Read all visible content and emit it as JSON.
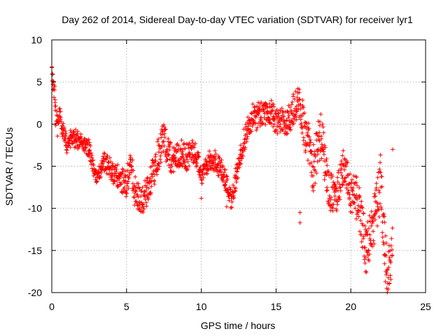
{
  "chart_data": {
    "type": "scatter",
    "title": "Day 262 of 2014, Sidereal Day-to-day VTEC variation (SDTVAR) for receiver lyr1",
    "xlabel": "GPS time / hours",
    "ylabel": "SDTVAR / TECUs",
    "xlim": [
      0,
      25
    ],
    "ylim": [
      -20,
      10
    ],
    "x_ticks": [
      0,
      5,
      10,
      15,
      20,
      25
    ],
    "x_tick_labels": [
      "0",
      "5",
      "10",
      "15",
      "20",
      "25"
    ],
    "y_ticks": [
      -20,
      -15,
      -10,
      -5,
      0,
      5,
      10
    ],
    "y_tick_labels": [
      "-20",
      "-15",
      "-10",
      "-5",
      "0",
      "5",
      "10"
    ],
    "grid": true,
    "marker": "+",
    "series": [
      {
        "name": "SDTVAR",
        "color": "#ff0000",
        "trend": [
          [
            0.0,
            6.3
          ],
          [
            0.1,
            4.5
          ],
          [
            0.2,
            3.5
          ],
          [
            0.3,
            0.5
          ],
          [
            0.4,
            -0.5
          ],
          [
            0.5,
            1.5
          ],
          [
            0.8,
            -1.5
          ],
          [
            1.0,
            -2.5
          ],
          [
            1.5,
            -1.5
          ],
          [
            2.0,
            -2.0
          ],
          [
            2.5,
            -3.0
          ],
          [
            3.0,
            -6.5
          ],
          [
            3.5,
            -4.5
          ],
          [
            4.0,
            -5.5
          ],
          [
            4.5,
            -6.5
          ],
          [
            5.0,
            -7.0
          ],
          [
            5.3,
            -5.0
          ],
          [
            5.5,
            -7.5
          ],
          [
            6.0,
            -9.5
          ],
          [
            6.5,
            -8.0
          ],
          [
            7.0,
            -4.0
          ],
          [
            7.5,
            -1.5
          ],
          [
            8.0,
            -4.5
          ],
          [
            8.5,
            -3.5
          ],
          [
            9.0,
            -4.0
          ],
          [
            9.5,
            -3.0
          ],
          [
            10.0,
            -6.0
          ],
          [
            10.5,
            -4.5
          ],
          [
            11.0,
            -4.5
          ],
          [
            11.5,
            -6.0
          ],
          [
            12.0,
            -9.0
          ],
          [
            12.5,
            -5.0
          ],
          [
            13.0,
            -1.0
          ],
          [
            13.5,
            1.0
          ],
          [
            14.0,
            1.0
          ],
          [
            14.5,
            1.5
          ],
          [
            15.0,
            0.5
          ],
          [
            15.5,
            0.0
          ],
          [
            16.0,
            1.0
          ],
          [
            16.5,
            2.5
          ],
          [
            17.0,
            -1.0
          ],
          [
            17.5,
            -5.0
          ],
          [
            18.0,
            -1.0
          ],
          [
            18.5,
            -7.5
          ],
          [
            19.0,
            -9.0
          ],
          [
            19.5,
            -5.0
          ],
          [
            20.0,
            -8.5
          ],
          [
            20.5,
            -9.0
          ],
          [
            21.0,
            -15.0
          ],
          [
            21.5,
            -12.0
          ],
          [
            22.0,
            -7.0
          ],
          [
            22.3,
            -15.0
          ],
          [
            22.5,
            -18.0
          ],
          [
            22.8,
            -14.0
          ]
        ],
        "spread_hours": [
          [
            0.0,
            0.6
          ],
          [
            0.1,
            1.2
          ],
          [
            0.3,
            1.2
          ],
          [
            1.0,
            1.0
          ],
          [
            3.0,
            0.8
          ],
          [
            5.0,
            1.6
          ],
          [
            7.0,
            2.0
          ],
          [
            9.0,
            1.4
          ],
          [
            10.0,
            1.0
          ],
          [
            12.0,
            1.2
          ],
          [
            13.0,
            1.4
          ],
          [
            15.0,
            1.4
          ],
          [
            16.5,
            2.0
          ],
          [
            17.5,
            3.0
          ],
          [
            19.0,
            2.0
          ],
          [
            20.5,
            2.4
          ],
          [
            21.5,
            3.0
          ],
          [
            22.5,
            3.5
          ],
          [
            22.8,
            2.0
          ]
        ],
        "outliers": [
          [
            16.6,
            -10.5
          ],
          [
            16.6,
            -11.7
          ],
          [
            10.0,
            -8.8
          ],
          [
            11.7,
            -9.8
          ],
          [
            22.5,
            -19.6
          ],
          [
            21.0,
            -17.5
          ],
          [
            22.8,
            -3.0
          ],
          [
            14.8,
            -0.3
          ]
        ]
      }
    ]
  }
}
